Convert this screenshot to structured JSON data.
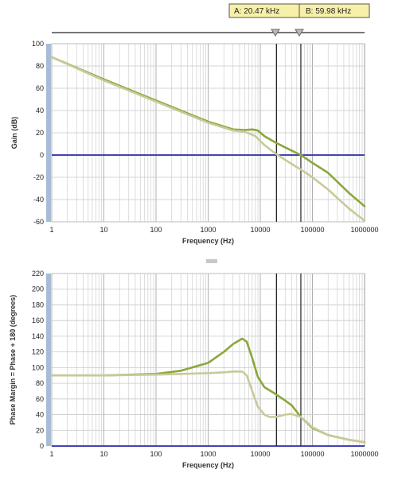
{
  "cursor_readouts": {
    "a_label": "A: 20.47 kHz",
    "b_label": "B: 59.98 kHz"
  },
  "colors": {
    "bg": "#ffffff",
    "grid": "#c8c8c8",
    "zero_line": "#2a2aa8",
    "series_dark": "#8aa83a",
    "series_light": "#c9c99a",
    "cursor_line": "#222222",
    "readout_fill": "#f7f0a8",
    "axis_strip": "#a8bcd6"
  },
  "chart_data": [
    {
      "type": "line",
      "xscale": "log",
      "xlim": [
        1,
        1000000
      ],
      "ylim": [
        -60,
        100
      ],
      "xlabel": "Frequency (Hz)",
      "ylabel": "Gain (dB)",
      "x_ticks": [
        "1",
        "10",
        "100",
        "1000",
        "10000",
        "100000",
        "1000000"
      ],
      "y_ticks": [
        "100",
        "80",
        "60",
        "40",
        "20",
        "0",
        "-20",
        "-40",
        "-60"
      ],
      "grid": true,
      "cursors_hz": [
        20470,
        59980
      ],
      "series": [
        {
          "x": [
            1,
            10,
            100,
            1000,
            3000,
            5000,
            7000,
            9000,
            12000,
            20000,
            40000,
            60000,
            100000,
            200000,
            500000,
            1000000
          ],
          "values": [
            88,
            68,
            49,
            30,
            23,
            22.5,
            23,
            22,
            17,
            11,
            4,
            0,
            -7,
            -16,
            -34,
            -46
          ]
        },
        {
          "x": [
            1,
            10,
            100,
            1000,
            3000,
            5000,
            8000,
            12000,
            20000,
            40000,
            60000,
            100000,
            200000,
            500000,
            1000000
          ],
          "values": [
            88,
            67,
            48,
            29,
            22,
            21,
            17,
            9,
            1,
            -8,
            -13,
            -20,
            -31,
            -48,
            -59
          ]
        }
      ]
    },
    {
      "type": "line",
      "xscale": "log",
      "xlim": [
        1,
        1000000
      ],
      "ylim": [
        0,
        220
      ],
      "xlabel": "Frequency (Hz)",
      "ylabel": "Phase Margin = Phase + 180 (degrees)",
      "x_ticks": [
        "1",
        "10",
        "100",
        "1000",
        "10000",
        "100000",
        "1000000"
      ],
      "y_ticks": [
        "220",
        "200",
        "180",
        "160",
        "140",
        "120",
        "100",
        "80",
        "60",
        "40",
        "20",
        "0"
      ],
      "grid": true,
      "cursors_hz": [
        20470,
        59980
      ],
      "series": [
        {
          "x": [
            1,
            10,
            100,
            300,
            1000,
            2000,
            3000,
            4500,
            5500,
            7000,
            9000,
            12000,
            20000,
            30000,
            40000,
            60000,
            100000,
            200000,
            500000,
            1000000
          ],
          "values": [
            90,
            90,
            92,
            96,
            106,
            120,
            130,
            137,
            133,
            112,
            88,
            75,
            66,
            58,
            52,
            37,
            23,
            14,
            8,
            5
          ]
        },
        {
          "x": [
            1,
            10,
            100,
            300,
            1000,
            2000,
            3000,
            4500,
            5500,
            7000,
            9000,
            12000,
            15000,
            20000,
            30000,
            40000,
            60000,
            100000,
            200000,
            500000,
            1000000
          ],
          "values": [
            90,
            90,
            91,
            92,
            93,
            94,
            95,
            95,
            90,
            70,
            50,
            40,
            37,
            37,
            40,
            41,
            37,
            24,
            14,
            8,
            5
          ]
        }
      ]
    }
  ]
}
